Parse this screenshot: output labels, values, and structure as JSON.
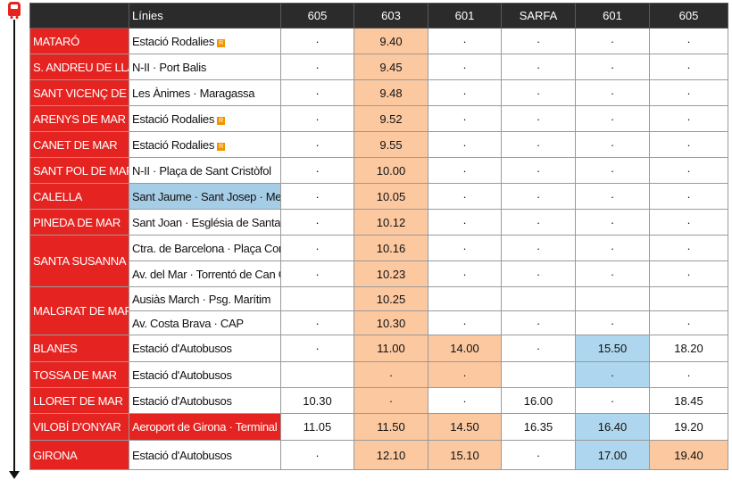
{
  "header": {
    "lines_label": "Línies",
    "columns": [
      "605",
      "603",
      "601",
      "SARFA",
      "601",
      "605"
    ]
  },
  "rows": [
    {
      "town": "MATARÓ",
      "stop": "Estació Rodalies",
      "rodalies": true,
      "times": [
        "·",
        "9.40",
        "·",
        "·",
        "·",
        "·"
      ]
    },
    {
      "town": "S. ANDREU DE LLAVANERES",
      "stop": "N-II · Port Balis",
      "times": [
        "·",
        "9.45",
        "·",
        "·",
        "·",
        "·"
      ]
    },
    {
      "town": "SANT VICENÇ DE MONTALT",
      "stop": "Les Ànimes · Maragassa",
      "times": [
        "·",
        "9.48",
        "·",
        "·",
        "·",
        "·"
      ]
    },
    {
      "town": "ARENYS DE MAR",
      "stop": "Estació Rodalies",
      "rodalies": true,
      "times": [
        "·",
        "9.52",
        "·",
        "·",
        "·",
        "·"
      ]
    },
    {
      "town": "CANET DE MAR",
      "stop": "Estació Rodalies",
      "rodalies": true,
      "times": [
        "·",
        "9.55",
        "·",
        "·",
        "·",
        "·"
      ]
    },
    {
      "town": "SANT POL DE MAR",
      "stop": "N-II · Plaça de Sant Cristòfol",
      "times": [
        "·",
        "10.00",
        "·",
        "·",
        "·",
        "·"
      ]
    },
    {
      "town": "CALELLA",
      "stop": "Sant Jaume · Sant Josep · Mercat",
      "times": [
        "·",
        "10.05",
        "·",
        "·",
        "·",
        "·"
      ]
    },
    {
      "town": "PINEDA DE MAR",
      "stop": "Sant Joan · Església de Santa Maria",
      "times": [
        "·",
        "10.12",
        "·",
        "·",
        "·",
        "·"
      ]
    },
    {
      "town": "SANTA SUSANNA",
      "stop": "Ctra. de Barcelona · Plaça Corratgé",
      "times": [
        "·",
        "10.16",
        "·",
        "·",
        "·",
        "·"
      ]
    },
    {
      "town": "",
      "stop": "Av. del Mar · Torrentó de Can Gelat",
      "times": [
        "·",
        "10.23",
        "·",
        "·",
        "·",
        "·"
      ]
    },
    {
      "town": "MALGRAT DE MAR",
      "stop": "Ausiàs March · Psg. Marítim",
      "times": [
        "",
        "10.25",
        "",
        "",
        "",
        ""
      ]
    },
    {
      "town": "",
      "stop": "Av. Costa Brava · CAP",
      "times": [
        "·",
        "10.30",
        "·",
        "·",
        "·",
        "·"
      ]
    },
    {
      "town": "BLANES",
      "stop": "Estació d'Autobusos",
      "times": [
        "·",
        "11.00",
        "14.00",
        "·",
        "15.50",
        "18.20"
      ]
    },
    {
      "town": "TOSSA DE MAR",
      "stop": "Estació d'Autobusos",
      "times": [
        "",
        "·",
        "·",
        "",
        "·",
        "·"
      ]
    },
    {
      "town": "LLORET DE MAR",
      "stop": "Estació d'Autobusos",
      "times": [
        "10.30",
        "·",
        "·",
        "16.00",
        "·",
        "18.45"
      ]
    },
    {
      "town": "VILOBÍ D'ONYAR",
      "stop": "Aeroport de Girona · Terminal",
      "times": [
        "11.05",
        "11.50",
        "14.50",
        "16.35",
        "16.40",
        "19.20"
      ]
    },
    {
      "town": "GIRONA",
      "stop": "Estació d'Autobusos",
      "times": [
        "·",
        "12.10",
        "15.10",
        "·",
        "17.00",
        "19.40"
      ]
    }
  ],
  "rodalies_badge": "R",
  "colors": {
    "town_red": "#e52421",
    "orange": "#fcc8a0",
    "blue": "#aed6ee",
    "header": "#2b2b2b"
  }
}
